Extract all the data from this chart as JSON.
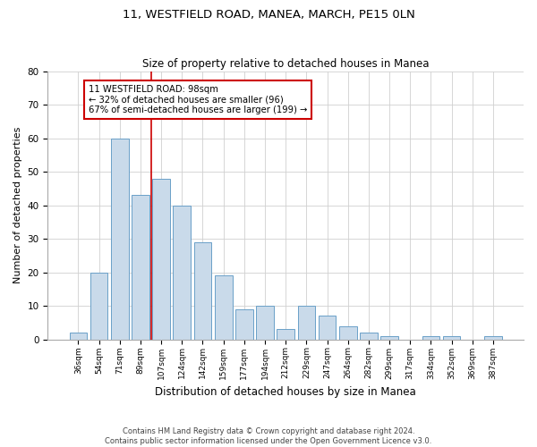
{
  "title": "11, WESTFIELD ROAD, MANEA, MARCH, PE15 0LN",
  "subtitle": "Size of property relative to detached houses in Manea",
  "xlabel": "Distribution of detached houses by size in Manea",
  "ylabel": "Number of detached properties",
  "categories": [
    "36sqm",
    "54sqm",
    "71sqm",
    "89sqm",
    "107sqm",
    "124sqm",
    "142sqm",
    "159sqm",
    "177sqm",
    "194sqm",
    "212sqm",
    "229sqm",
    "247sqm",
    "264sqm",
    "282sqm",
    "299sqm",
    "317sqm",
    "334sqm",
    "352sqm",
    "369sqm",
    "387sqm"
  ],
  "bar_heights": [
    2,
    20,
    60,
    43,
    48,
    40,
    29,
    19,
    9,
    10,
    3,
    10,
    7,
    4,
    2,
    1,
    0,
    1,
    1,
    0,
    1
  ],
  "bar_color": "#c9daea",
  "bar_edge_color": "#6aa0c8",
  "ylim": [
    0,
    80
  ],
  "yticks": [
    0,
    10,
    20,
    30,
    40,
    50,
    60,
    70,
    80
  ],
  "vline_x": 3.5,
  "vline_color": "#cc0000",
  "annotation_line1": "11 WESTFIELD ROAD: 98sqm",
  "annotation_line2": "← 32% of detached houses are smaller (96)",
  "annotation_line3": "67% of semi-detached houses are larger (199) →",
  "annotation_box_edge_color": "#cc0000",
  "background_color": "#ffffff",
  "grid_color": "#d0d0d0",
  "footer_line1": "Contains HM Land Registry data © Crown copyright and database right 2024.",
  "footer_line2": "Contains public sector information licensed under the Open Government Licence v3.0."
}
